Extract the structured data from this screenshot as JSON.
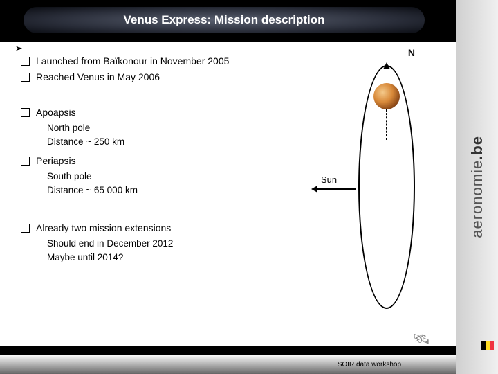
{
  "title": "Venus Express: Mission description",
  "sidebar": {
    "text_a": "aeronomie",
    "text_b": ".be"
  },
  "bullets": {
    "launch": "Launched from Baïkonour in November 2005",
    "reach": "Reached Venus in May 2006",
    "apoapsis": "Apoapsis",
    "apoapsis_sub": {
      "pole": "North pole",
      "dist": "Distance ~ 250 km"
    },
    "periapsis": "Periapsis",
    "periapsis_sub": {
      "pole": "South pole",
      "dist": "Distance ~ 65 000 km"
    },
    "ext": "Already two mission extensions",
    "ext_sub": {
      "end": "Should end in December 2012",
      "maybe": "Maybe until 2014?"
    }
  },
  "diagram": {
    "n_label": "N",
    "sun_label": "Sun",
    "ellipse_color": "#000000",
    "venus_colors": [
      "#f4c98a",
      "#d98a3a",
      "#7a3a10"
    ],
    "background": "#ffffff"
  },
  "footer": "SOIR data workshop",
  "flag_colors": [
    "#000000",
    "#fdda24",
    "#ef3340"
  ]
}
